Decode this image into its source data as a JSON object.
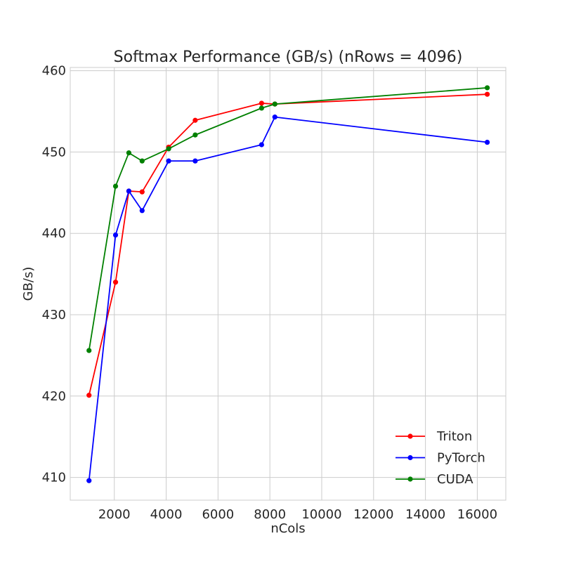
{
  "chart_data": {
    "type": "line",
    "title": "Softmax Performance (GB/s) (nRows = 4096)",
    "xlabel": "nCols",
    "ylabel": "GB/s)",
    "xlim": [
      300,
      17100
    ],
    "ylim": [
      407.2,
      460.4
    ],
    "x_ticks": [
      2000,
      4000,
      6000,
      8000,
      10000,
      12000,
      14000,
      16000
    ],
    "y_ticks": [
      410,
      420,
      430,
      440,
      450,
      460
    ],
    "grid": true,
    "legend_position": "lower-right",
    "x": [
      1024,
      2048,
      2560,
      3072,
      4096,
      5120,
      7680,
      8192,
      16384
    ],
    "series": [
      {
        "name": "Triton",
        "color": "#ff0000",
        "values": [
          420.1,
          434.0,
          445.2,
          445.1,
          450.6,
          453.9,
          456.0,
          455.9,
          457.1
        ]
      },
      {
        "name": "PyTorch",
        "color": "#0000ff",
        "values": [
          409.6,
          439.8,
          445.2,
          442.8,
          448.9,
          448.9,
          450.9,
          454.3,
          451.2
        ]
      },
      {
        "name": "CUDA",
        "color": "#008000",
        "values": [
          425.6,
          445.8,
          449.9,
          448.9,
          450.4,
          452.1,
          455.4,
          455.9,
          457.9
        ]
      }
    ]
  }
}
